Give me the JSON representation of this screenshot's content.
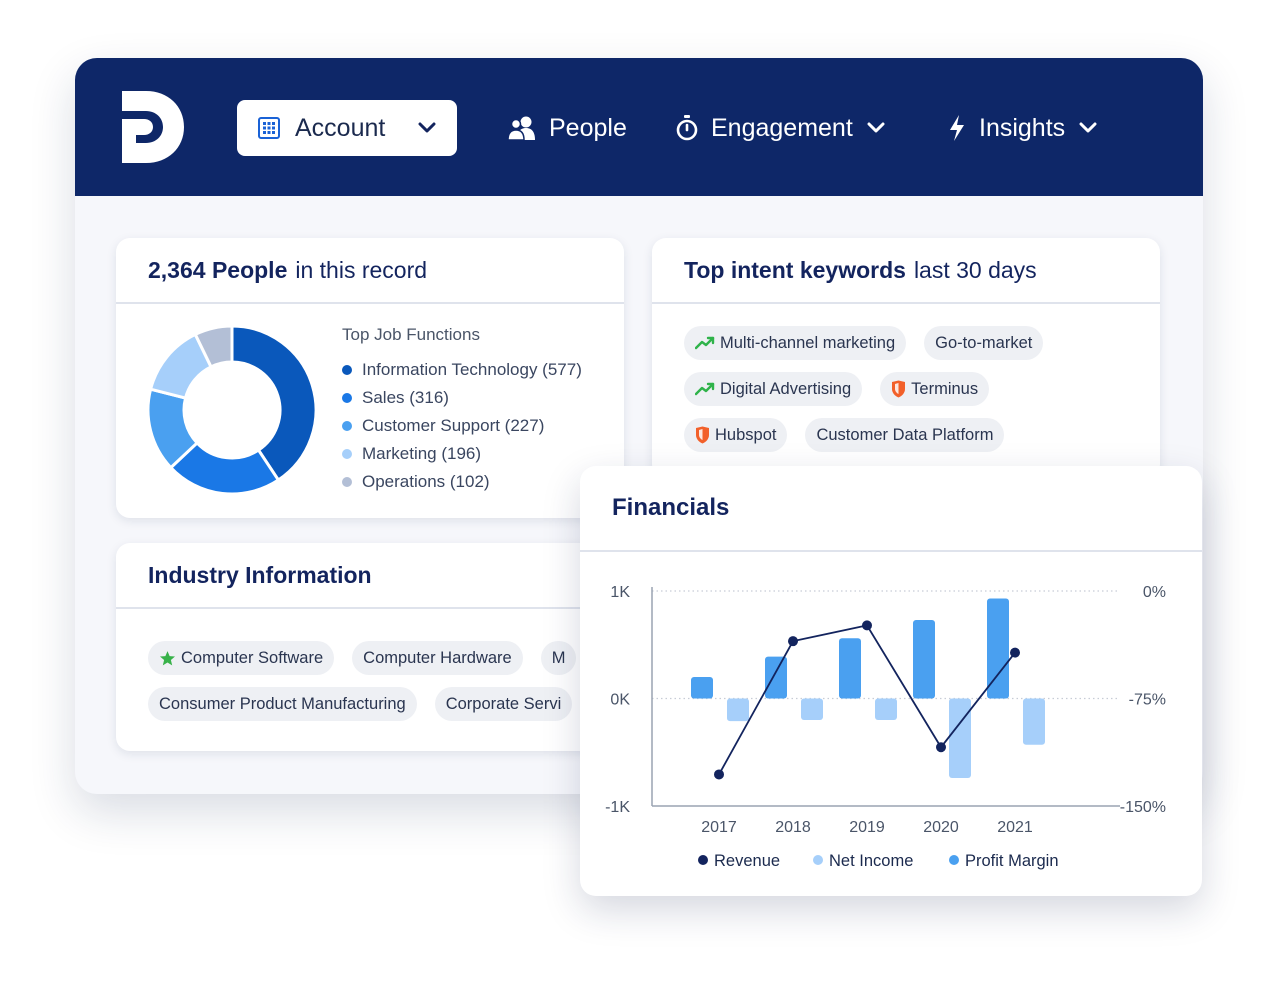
{
  "nav": {
    "account_label": "Account",
    "items": [
      {
        "label": "People",
        "icon": "people-icon"
      },
      {
        "label": "Engagement",
        "icon": "stopwatch-icon"
      },
      {
        "label": "Insights",
        "icon": "lightning-icon"
      }
    ],
    "colors": {
      "bar": "#0e2768"
    }
  },
  "people_card": {
    "count": "2,364 People",
    "suffix": "in this record",
    "subtitle": "Top Job Functions",
    "functions": [
      {
        "label": "Information Technology (577)",
        "value": 577,
        "color": "#0a58bb"
      },
      {
        "label": "Sales (316)",
        "value": 316,
        "color": "#1a78e6"
      },
      {
        "label": "Customer Support (227)",
        "value": 227,
        "color": "#4aa0f0"
      },
      {
        "label": "Marketing (196)",
        "value": 196,
        "color": "#a6cffa"
      },
      {
        "label": "Operations (102)",
        "value": 102,
        "color": "#b3bfd6"
      }
    ]
  },
  "keywords_card": {
    "title": "Top intent keywords",
    "suffix": "last 30 days",
    "rows": [
      [
        {
          "label": "Multi-channel marketing",
          "icon": "trending-up-icon"
        },
        {
          "label": "Go-to-market",
          "icon": ""
        }
      ],
      [
        {
          "label": "Digital Advertising",
          "icon": "trending-up-icon"
        },
        {
          "label": "Terminus",
          "icon": "shield-icon"
        }
      ],
      [
        {
          "label": "Hubspot",
          "icon": "shield-icon"
        },
        {
          "label": "Customer Data Platform",
          "icon": ""
        }
      ]
    ]
  },
  "industry_card": {
    "title": "Industry Information",
    "rows": [
      [
        {
          "label": "Computer Software",
          "icon": "star-icon"
        },
        {
          "label": "Computer Hardware",
          "icon": ""
        },
        {
          "label": "M",
          "icon": ""
        }
      ],
      [
        {
          "label": "Consumer Product Manufacturing",
          "icon": ""
        },
        {
          "label": "Corporate Servi",
          "icon": ""
        }
      ]
    ]
  },
  "financials": {
    "title": "Financials",
    "chart_data": {
      "type": "bar",
      "title": "Financials",
      "categories": [
        "2017",
        "2018",
        "2019",
        "2020",
        "2021"
      ],
      "series": [
        {
          "name": "Revenue",
          "type": "line",
          "axis": "right",
          "color": "#13245e",
          "values": [
            -128,
            -35,
            -24,
            -109,
            -43
          ]
        },
        {
          "name": "Net Income",
          "type": "bar",
          "axis": "left",
          "color": "#a6cffa",
          "values": [
            -210,
            -200,
            -200,
            -740,
            -430
          ]
        },
        {
          "name": "Profit Margin",
          "type": "bar",
          "axis": "left",
          "color": "#4aa0f0",
          "values": [
            200,
            390,
            560,
            730,
            930
          ]
        }
      ],
      "y_left": {
        "ticks": [
          "1K",
          "0K",
          "-1K"
        ],
        "range": [
          -1000,
          1000
        ]
      },
      "y_right": {
        "ticks": [
          "0%",
          "-75%",
          "-150%"
        ],
        "range": [
          -150,
          0
        ]
      },
      "legend": "bottom",
      "grid": "dotted"
    }
  }
}
